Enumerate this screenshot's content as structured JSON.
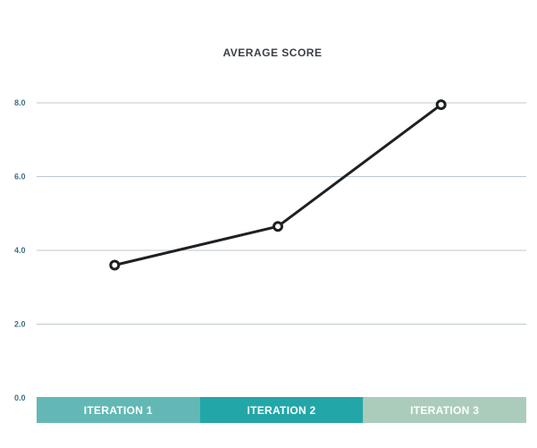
{
  "chart_data": {
    "type": "line",
    "title": "AVERAGE SCORE",
    "xlabel": "",
    "ylabel": "",
    "categories": [
      "ITERATION 1",
      "ITERATION 2",
      "ITERATION 3"
    ],
    "category_colors": [
      "#63b8b5",
      "#23a6a8",
      "#acccbb"
    ],
    "series": [
      {
        "values": [
          3.6,
          4.65,
          7.95
        ],
        "color": "#1e2022"
      }
    ],
    "ylim": [
      0,
      8
    ],
    "yticks": [
      0,
      2,
      4,
      6,
      8
    ],
    "ytick_labels": [
      "0.0",
      "2.0",
      "4.0",
      "6.0",
      "8.0"
    ],
    "grid": true,
    "legend": "none"
  }
}
